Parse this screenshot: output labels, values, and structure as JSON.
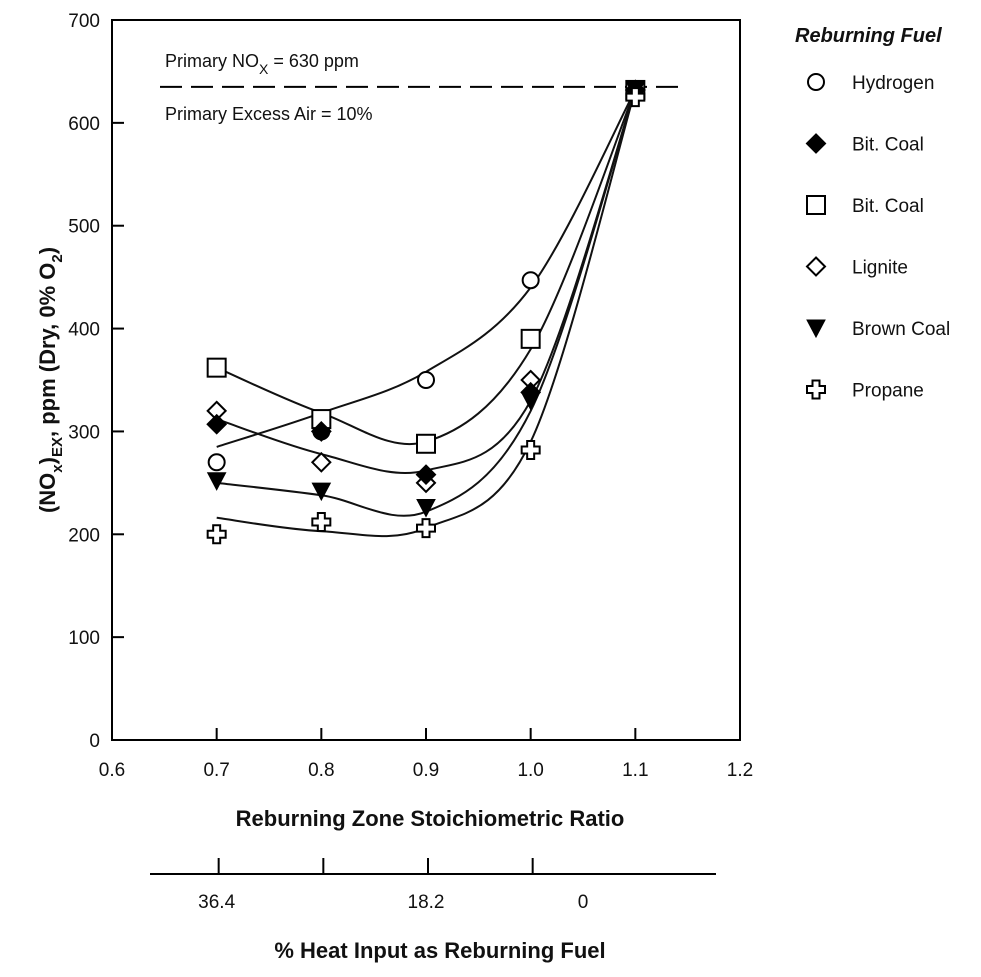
{
  "chart_data": {
    "type": "scatter",
    "title": "",
    "xlabel": "Reburning Zone Stoichiometric Ratio",
    "ylabel_parts": [
      "(NO",
      "x",
      ")",
      "EX",
      ", ppm (Dry, 0% O",
      "2",
      ")"
    ],
    "xlim": [
      0.6,
      1.2
    ],
    "ylim": [
      0,
      700
    ],
    "x_ticks": [
      0.6,
      0.7,
      0.8,
      0.9,
      1.0,
      1.1,
      1.2
    ],
    "x_tick_labels": [
      "0.6",
      "0.7",
      "0.8",
      "0.9",
      "1.0",
      "1.1",
      "1.2"
    ],
    "y_ticks": [
      0,
      100,
      200,
      300,
      400,
      500,
      600,
      700
    ],
    "y_tick_labels": [
      "0",
      "100",
      "200",
      "300",
      "400",
      "500",
      "600",
      "700"
    ],
    "grid": false,
    "reference_line": {
      "y": 635,
      "style": "dashed"
    },
    "annotations": {
      "primary_nox": [
        "Primary NO",
        "X",
        " = 630 ppm"
      ],
      "excess_air": "Primary Excess Air = 10%"
    },
    "secondary_axis": {
      "label": "% Heat Input as Reburning Fuel",
      "tick_positions": [
        0.7,
        0.8,
        0.9,
        1.0
      ],
      "labels": [
        {
          "at": 0.7,
          "text": "36.4"
        },
        {
          "at": 0.9,
          "text": "18.2"
        },
        {
          "at": 1.05,
          "text": "0"
        }
      ]
    },
    "legend": {
      "title": "Reburning Fuel",
      "position": "right"
    },
    "series": [
      {
        "name": "Hydrogen",
        "marker": "circle-open",
        "x": [
          0.7,
          0.8,
          0.9,
          1.0,
          1.1
        ],
        "y": [
          270,
          300,
          350,
          447,
          632
        ]
      },
      {
        "name": "Bit. Coal",
        "marker": "diamond-filled",
        "x": [
          0.7,
          0.8,
          0.9,
          1.0,
          1.1
        ],
        "y": [
          307,
          300,
          258,
          338,
          632
        ]
      },
      {
        "name": "Bit. Coal",
        "marker": "square-open",
        "x": [
          0.7,
          0.8,
          0.9,
          1.0,
          1.1
        ],
        "y": [
          362,
          312,
          288,
          390,
          632
        ]
      },
      {
        "name": "Lignite",
        "marker": "diamond-open",
        "x": [
          0.7,
          0.8,
          0.9,
          1.0,
          1.1
        ],
        "y": [
          320,
          270,
          250,
          350,
          632
        ]
      },
      {
        "name": "Brown Coal",
        "marker": "triangle-down-filled",
        "x": [
          0.7,
          0.8,
          0.9,
          1.0,
          1.1
        ],
        "y": [
          252,
          242,
          226,
          330,
          632
        ]
      },
      {
        "name": "Propane",
        "marker": "cross-open",
        "x": [
          0.7,
          0.8,
          0.9,
          1.0,
          1.1
        ],
        "y": [
          200,
          212,
          206,
          282,
          625
        ]
      }
    ],
    "curves": [
      {
        "series": "Hydrogen",
        "x": [
          0.7,
          0.8,
          0.9,
          1.0,
          1.1
        ],
        "y": [
          285,
          318,
          358,
          440,
          632
        ]
      },
      {
        "series": "Bit. Coal",
        "x": [
          0.7,
          0.8,
          0.9,
          1.0,
          1.1
        ],
        "y": [
          312,
          278,
          262,
          330,
          632
        ]
      },
      {
        "series": "Bit. Coal (open)",
        "x": [
          0.7,
          0.8,
          0.9,
          1.0,
          1.1
        ],
        "y": [
          362,
          318,
          290,
          380,
          632
        ]
      },
      {
        "series": "Brown Coal",
        "x": [
          0.7,
          0.8,
          0.9,
          1.0,
          1.1
        ],
        "y": [
          250,
          238,
          222,
          320,
          632
        ]
      },
      {
        "series": "Propane",
        "x": [
          0.7,
          0.8,
          0.9,
          1.0,
          1.1
        ],
        "y": [
          216,
          203,
          206,
          290,
          632
        ]
      }
    ]
  }
}
